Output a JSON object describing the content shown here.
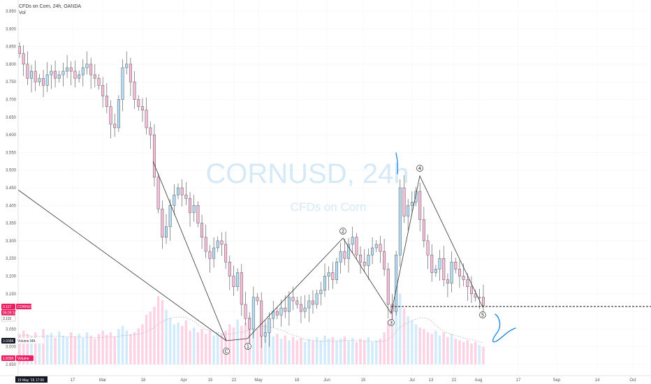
{
  "legend": {
    "title": "CFDs on Corn, 24h, OANDA",
    "volume_label": "Vol"
  },
  "watermark": {
    "symbol": "CORNUSD, 24h",
    "description": "CFDs on Corn"
  },
  "price_tags": {
    "last_price": "3.117",
    "symbol_name": "CORNUSD",
    "countdown": "06:09:18",
    "prev_price": "3.115",
    "volume_ma_value": "3.936K",
    "volume_ma_label": "Volume MA",
    "volume_value": "1.835K",
    "volume_label": "Volume"
  },
  "time_tag": "19 May '19    17:00",
  "colors": {
    "up_body": "#b3dcf7",
    "down_body": "#f7bcd7",
    "up_volume": "#d2ebfa",
    "down_volume": "#fbd3e4",
    "wick": "#4a4a4a",
    "accent_pink": "#e91e63",
    "pen_blue": "#1e88e5"
  },
  "chart_data": {
    "type": "candlestick",
    "title": "CFDs on Corn, 24h, OANDA",
    "y_tick_labels": [
      "3.950",
      "3.900",
      "3.850",
      "3.800",
      "3.750",
      "3.700",
      "3.650",
      "3.600",
      "3.550",
      "3.500",
      "3.450",
      "3.400",
      "3.350",
      "3.300",
      "3.250",
      "3.200",
      "3.150",
      "3.100",
      "3.050",
      "3.000",
      "2.950"
    ],
    "ylim": [
      2.94,
      3.96
    ],
    "x_tick_labels": [
      "17",
      "Mar",
      "18",
      "Apr",
      "15",
      "22",
      "May",
      "18",
      "Jun",
      "15",
      "Jul",
      "13",
      "22",
      "Aug",
      "17",
      "Sep",
      "14",
      "Oct"
    ],
    "close_prices": [
      3.83,
      3.8,
      3.76,
      3.78,
      3.75,
      3.76,
      3.74,
      3.77,
      3.78,
      3.76,
      3.77,
      3.78,
      3.79,
      3.78,
      3.76,
      3.77,
      3.79,
      3.8,
      3.77,
      3.76,
      3.74,
      3.71,
      3.68,
      3.63,
      3.62,
      3.7,
      3.79,
      3.8,
      3.75,
      3.7,
      3.68,
      3.67,
      3.62,
      3.6,
      3.48,
      3.39,
      3.31,
      3.34,
      3.4,
      3.43,
      3.45,
      3.43,
      3.42,
      3.38,
      3.4,
      3.35,
      3.31,
      3.27,
      3.25,
      3.28,
      3.3,
      3.29,
      3.24,
      3.2,
      3.17,
      3.21,
      3.12,
      3.08,
      3.05,
      3.14,
      3.13,
      3.03,
      3.04,
      3.08,
      3.1,
      3.09,
      3.11,
      3.1,
      3.14,
      3.13,
      3.12,
      3.1,
      3.11,
      3.13,
      3.12,
      3.15,
      3.16,
      3.2,
      3.21,
      3.19,
      3.24,
      3.27,
      3.25,
      3.29,
      3.31,
      3.26,
      3.24,
      3.23,
      3.26,
      3.28,
      3.29,
      3.27,
      3.22,
      3.12,
      3.1,
      3.26,
      3.45,
      3.37,
      3.4,
      3.41,
      3.44,
      3.36,
      3.3,
      3.26,
      3.21,
      3.22,
      3.25,
      3.19,
      3.18,
      3.24,
      3.22,
      3.2,
      3.19,
      3.17,
      3.15,
      3.14,
      3.14,
      3.117
    ],
    "volume_levels": [
      0.38,
      0.42,
      0.38,
      0.35,
      0.4,
      0.32,
      0.44,
      0.37,
      0.39,
      0.33,
      0.41,
      0.36,
      0.34,
      0.4,
      0.35,
      0.38,
      0.33,
      0.4,
      0.36,
      0.32,
      0.38,
      0.42,
      0.37,
      0.4,
      0.35,
      0.44,
      0.48,
      0.42,
      0.38,
      0.4,
      0.45,
      0.5,
      0.62,
      0.66,
      0.72,
      0.85,
      0.8,
      0.68,
      0.58,
      0.5,
      0.52,
      0.48,
      0.55,
      0.42,
      0.46,
      0.4,
      0.44,
      0.38,
      0.42,
      0.36,
      0.4,
      0.38,
      0.42,
      0.5,
      0.46,
      0.56,
      0.48,
      0.52,
      0.6,
      0.54,
      0.44,
      0.58,
      0.5,
      0.4,
      0.35,
      0.38,
      0.32,
      0.36,
      0.3,
      0.34,
      0.3,
      0.33,
      0.28,
      0.32,
      0.3,
      0.34,
      0.3,
      0.36,
      0.32,
      0.34,
      0.3,
      0.32,
      0.35,
      0.3,
      0.33,
      0.28,
      0.32,
      0.3,
      0.34,
      0.28,
      0.3,
      0.32,
      0.4,
      0.55,
      0.7,
      0.95,
      0.88,
      0.7,
      0.6,
      0.55,
      0.5,
      0.46,
      0.44,
      0.4,
      0.38,
      0.42,
      0.36,
      0.4,
      0.34,
      0.38,
      0.32,
      0.3,
      0.28,
      0.3,
      0.26,
      0.28,
      0.24,
      0.22
    ],
    "last_price": 3.117,
    "drawings": {
      "wave_labels": [
        "C",
        "1",
        "2",
        "3",
        "4",
        "5"
      ]
    }
  }
}
